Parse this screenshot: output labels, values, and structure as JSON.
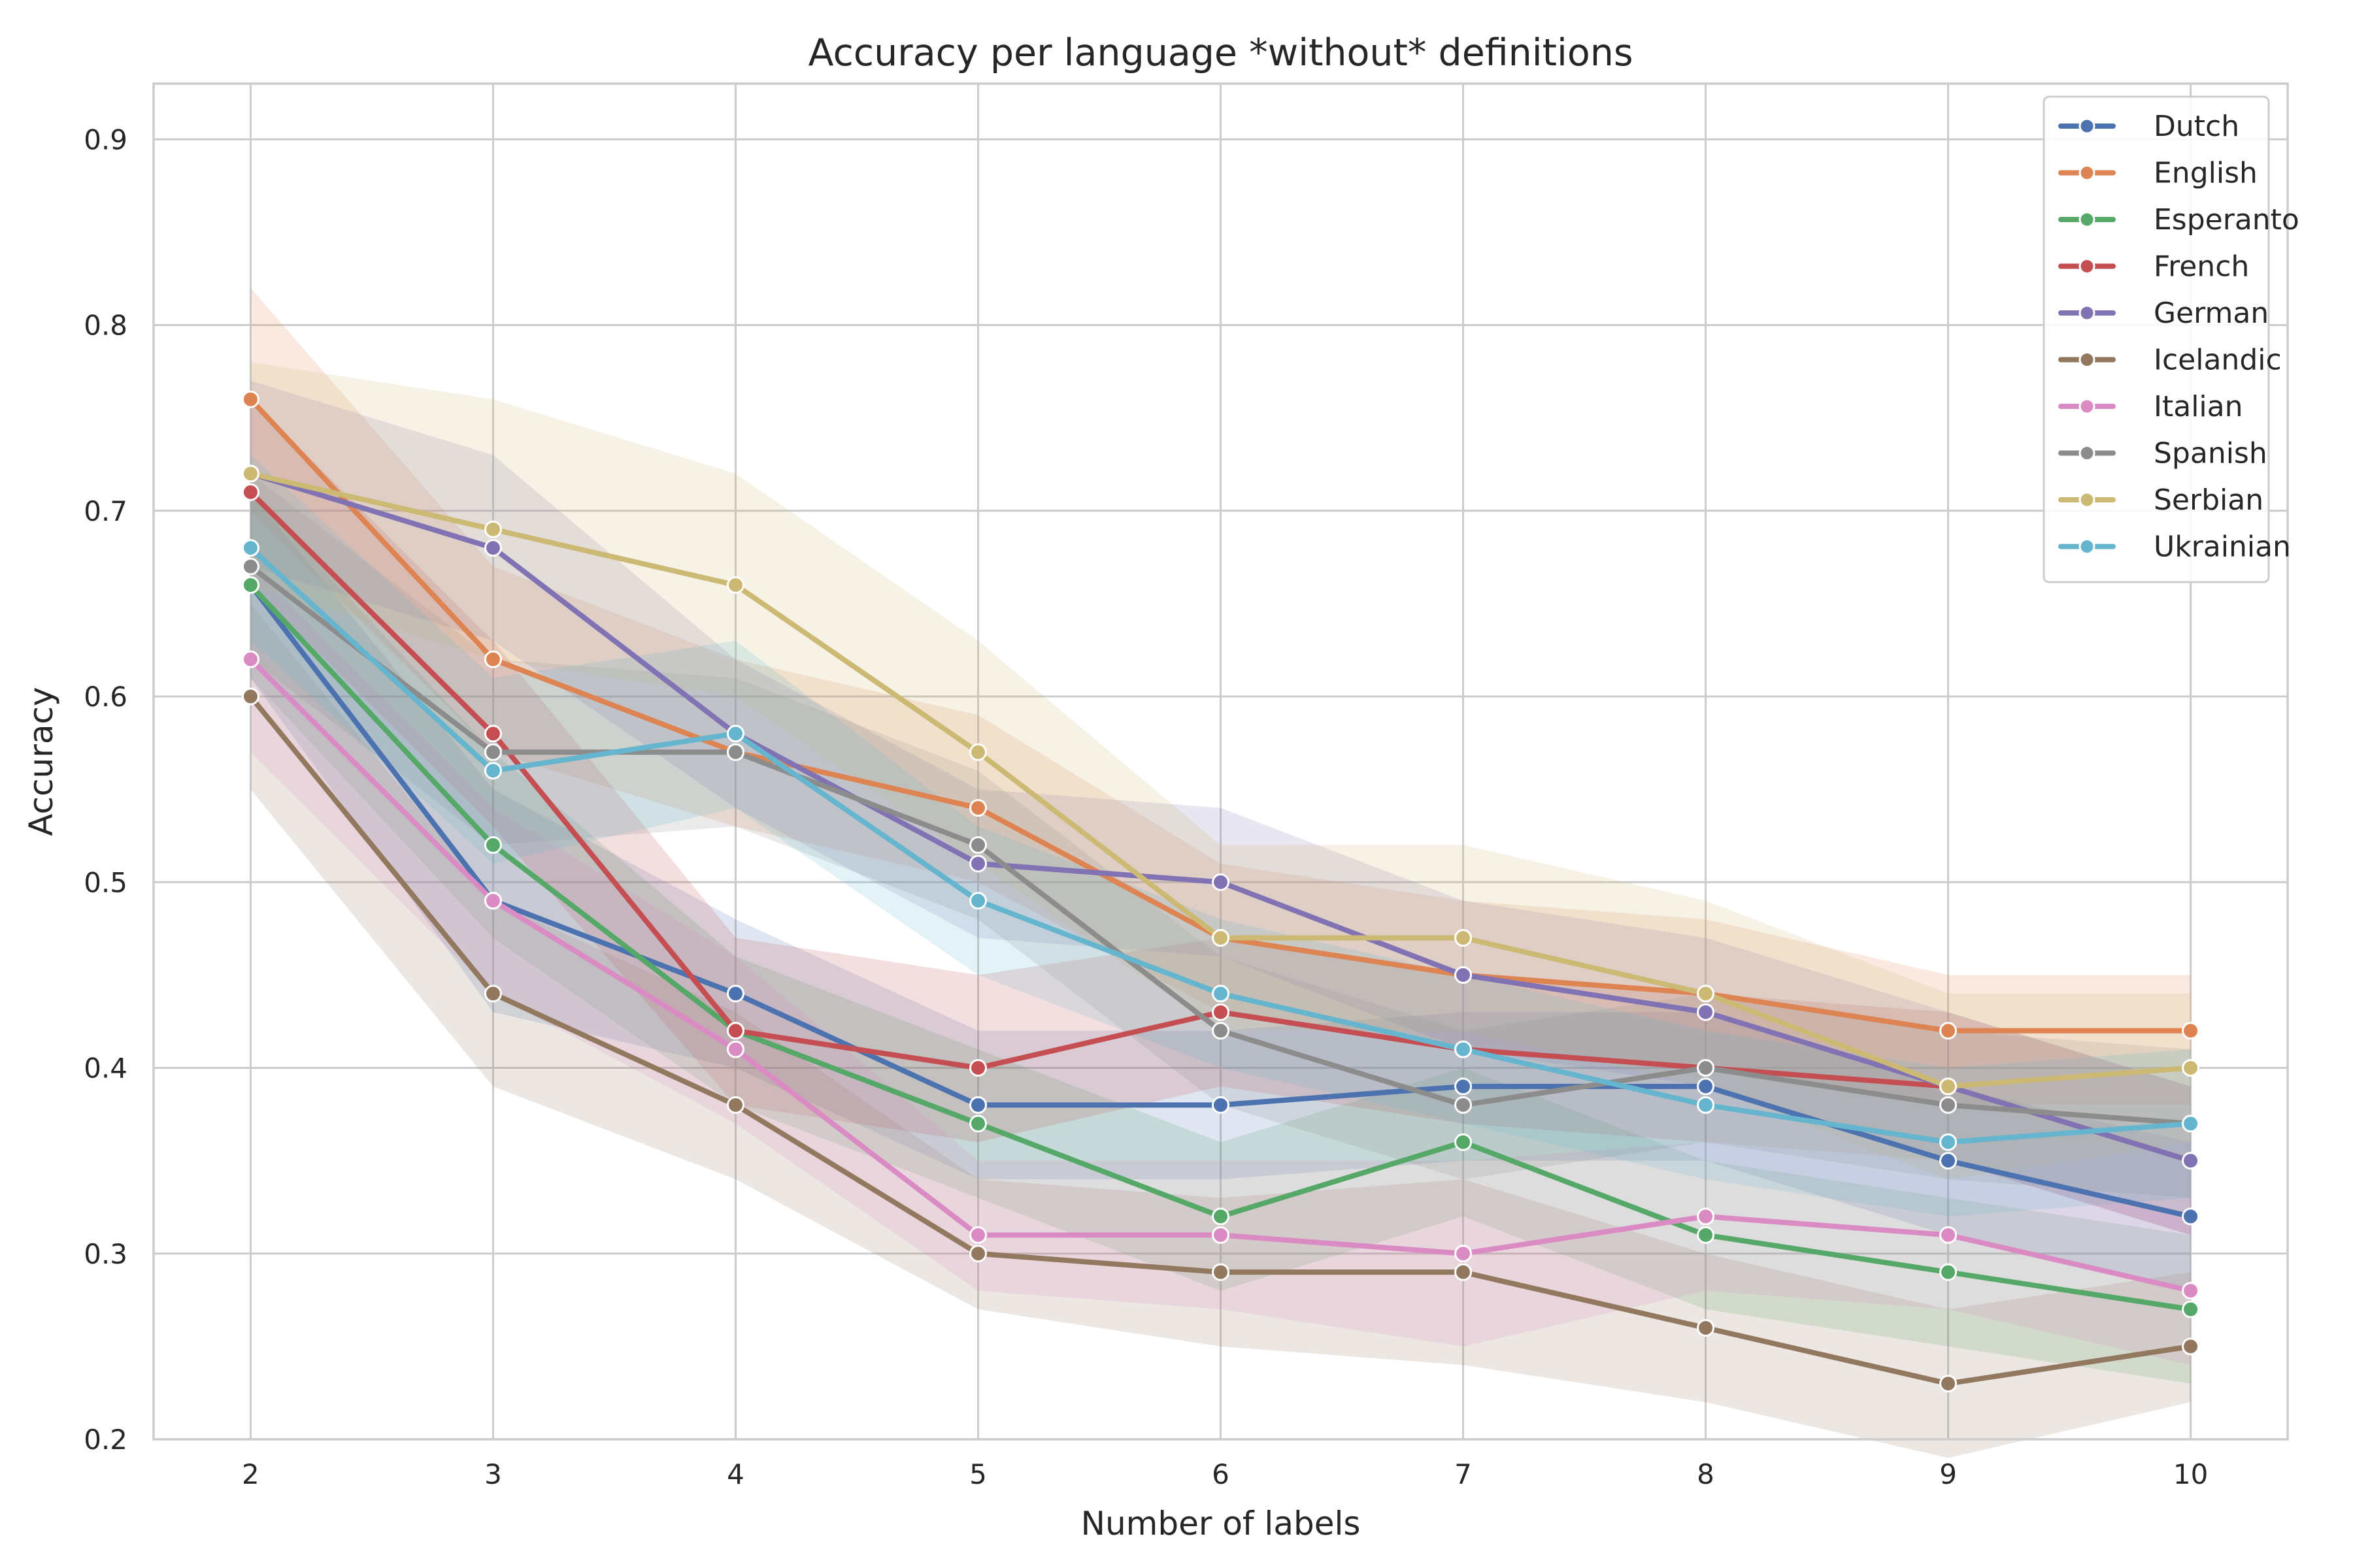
{
  "chart_data": {
    "type": "line",
    "title": "Accuracy per language *without* definitions",
    "xlabel": "Number of labels",
    "ylabel": "Accuracy",
    "x": [
      2,
      3,
      4,
      5,
      6,
      7,
      8,
      9,
      10
    ],
    "xlim": [
      1.6,
      10.4
    ],
    "ylim": [
      0.2,
      0.93
    ],
    "yticks": [
      0.2,
      0.3,
      0.4,
      0.5,
      0.6,
      0.7,
      0.8,
      0.9
    ],
    "grid": true,
    "legend_position": "top-right",
    "series": [
      {
        "name": "Dutch",
        "color": "#4c72b0",
        "values": [
          0.66,
          0.49,
          0.44,
          0.38,
          0.38,
          0.39,
          0.39,
          0.35,
          0.32
        ],
        "ci_low": [
          0.61,
          0.43,
          0.4,
          0.34,
          0.34,
          0.35,
          0.35,
          0.31,
          0.28
        ],
        "ci_high": [
          0.71,
          0.55,
          0.48,
          0.42,
          0.42,
          0.43,
          0.43,
          0.39,
          0.36
        ]
      },
      {
        "name": "English",
        "color": "#dd8452",
        "values": [
          0.76,
          0.62,
          0.57,
          0.54,
          0.47,
          0.45,
          0.44,
          0.42,
          0.42
        ],
        "ci_low": [
          0.7,
          0.57,
          0.53,
          0.5,
          0.43,
          0.41,
          0.4,
          0.38,
          0.38
        ],
        "ci_high": [
          0.82,
          0.67,
          0.62,
          0.59,
          0.51,
          0.49,
          0.48,
          0.45,
          0.45
        ]
      },
      {
        "name": "Esperanto",
        "color": "#55a868",
        "values": [
          0.66,
          0.52,
          0.42,
          0.37,
          0.32,
          0.36,
          0.31,
          0.29,
          0.27
        ],
        "ci_low": [
          0.61,
          0.47,
          0.38,
          0.33,
          0.28,
          0.32,
          0.27,
          0.25,
          0.23
        ],
        "ci_high": [
          0.71,
          0.57,
          0.46,
          0.41,
          0.36,
          0.4,
          0.35,
          0.33,
          0.31
        ]
      },
      {
        "name": "French",
        "color": "#c44e52",
        "values": [
          0.71,
          0.58,
          0.42,
          0.4,
          0.43,
          0.41,
          0.4,
          0.39,
          0.35
        ],
        "ci_low": [
          0.66,
          0.53,
          0.38,
          0.36,
          0.39,
          0.37,
          0.36,
          0.35,
          0.31
        ],
        "ci_high": [
          0.76,
          0.63,
          0.47,
          0.45,
          0.47,
          0.45,
          0.44,
          0.43,
          0.39
        ]
      },
      {
        "name": "German",
        "color": "#8172b3",
        "values": [
          0.72,
          0.68,
          0.58,
          0.51,
          0.5,
          0.45,
          0.43,
          0.39,
          0.35
        ],
        "ci_low": [
          0.67,
          0.63,
          0.54,
          0.47,
          0.46,
          0.41,
          0.39,
          0.35,
          0.31
        ],
        "ci_high": [
          0.77,
          0.73,
          0.62,
          0.55,
          0.54,
          0.49,
          0.47,
          0.43,
          0.39
        ]
      },
      {
        "name": "Icelandic",
        "color": "#937860",
        "values": [
          0.6,
          0.44,
          0.38,
          0.3,
          0.29,
          0.29,
          0.26,
          0.23,
          0.25
        ],
        "ci_low": [
          0.55,
          0.39,
          0.34,
          0.27,
          0.25,
          0.24,
          0.22,
          0.19,
          0.22
        ],
        "ci_high": [
          0.65,
          0.49,
          0.43,
          0.34,
          0.33,
          0.34,
          0.3,
          0.27,
          0.29
        ]
      },
      {
        "name": "Italian",
        "color": "#da8bc3",
        "values": [
          0.62,
          0.49,
          0.41,
          0.31,
          0.31,
          0.3,
          0.32,
          0.31,
          0.28
        ],
        "ci_low": [
          0.57,
          0.44,
          0.37,
          0.28,
          0.27,
          0.25,
          0.28,
          0.27,
          0.24
        ],
        "ci_high": [
          0.67,
          0.54,
          0.46,
          0.35,
          0.35,
          0.35,
          0.36,
          0.35,
          0.32
        ]
      },
      {
        "name": "Spanish",
        "color": "#8c8c8c",
        "values": [
          0.67,
          0.57,
          0.57,
          0.52,
          0.42,
          0.38,
          0.4,
          0.38,
          0.37
        ],
        "ci_low": [
          0.62,
          0.52,
          0.53,
          0.48,
          0.38,
          0.34,
          0.36,
          0.34,
          0.33
        ],
        "ci_high": [
          0.72,
          0.62,
          0.61,
          0.56,
          0.46,
          0.42,
          0.44,
          0.42,
          0.41
        ]
      },
      {
        "name": "Serbian",
        "color": "#ccb974",
        "values": [
          0.72,
          0.69,
          0.66,
          0.57,
          0.47,
          0.47,
          0.44,
          0.39,
          0.4
        ],
        "ci_low": [
          0.66,
          0.62,
          0.6,
          0.51,
          0.42,
          0.42,
          0.39,
          0.34,
          0.36
        ],
        "ci_high": [
          0.78,
          0.76,
          0.72,
          0.63,
          0.52,
          0.52,
          0.49,
          0.44,
          0.44
        ]
      },
      {
        "name": "Ukrainian",
        "color": "#64b5cd",
        "values": [
          0.68,
          0.56,
          0.58,
          0.49,
          0.44,
          0.41,
          0.38,
          0.36,
          0.37
        ],
        "ci_low": [
          0.63,
          0.51,
          0.54,
          0.45,
          0.4,
          0.37,
          0.34,
          0.32,
          0.33
        ],
        "ci_high": [
          0.73,
          0.61,
          0.63,
          0.53,
          0.48,
          0.45,
          0.42,
          0.4,
          0.41
        ]
      }
    ]
  }
}
